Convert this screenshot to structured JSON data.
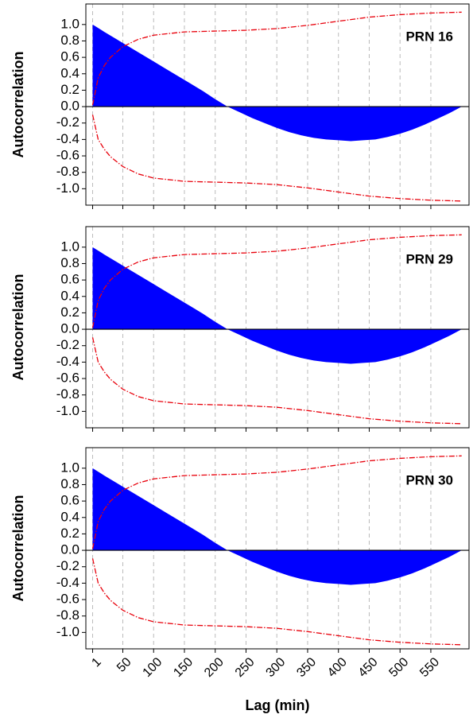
{
  "chart_data": [
    {
      "type": "area",
      "annotation": "PRN 16",
      "ylabel": "Autocorrelation",
      "xtick_labels": false,
      "x": [
        1,
        20,
        40,
        60,
        80,
        100,
        120,
        140,
        160,
        180,
        200,
        220,
        240,
        260,
        280,
        300,
        320,
        340,
        360,
        380,
        400,
        420,
        440,
        460,
        480,
        500,
        520,
        540,
        560,
        580,
        600
      ],
      "series": [
        {
          "color": "#0000ff",
          "values": [
            1.0,
            0.91,
            0.82,
            0.73,
            0.64,
            0.55,
            0.46,
            0.37,
            0.28,
            0.19,
            0.09,
            0.0,
            -0.07,
            -0.14,
            -0.2,
            -0.26,
            -0.31,
            -0.35,
            -0.38,
            -0.4,
            -0.41,
            -0.42,
            -0.41,
            -0.4,
            -0.37,
            -0.33,
            -0.28,
            -0.22,
            -0.15,
            -0.08,
            0.0
          ]
        },
        {
          "color": "#e8000b",
          "x": [
            1,
            10,
            20,
            30,
            50,
            75,
            100,
            150,
            200,
            250,
            300,
            350,
            400,
            450,
            500,
            550,
            600
          ],
          "values": [
            0.02,
            0.35,
            0.5,
            0.6,
            0.73,
            0.82,
            0.87,
            0.91,
            0.92,
            0.93,
            0.95,
            0.99,
            1.04,
            1.09,
            1.12,
            1.14,
            1.15
          ]
        },
        {
          "color": "#e8000b",
          "x": [
            1,
            10,
            20,
            30,
            50,
            75,
            100,
            150,
            200,
            250,
            300,
            350,
            400,
            450,
            500,
            550,
            600
          ],
          "values": [
            -0.1,
            -0.4,
            -0.52,
            -0.61,
            -0.73,
            -0.82,
            -0.87,
            -0.91,
            -0.92,
            -0.93,
            -0.95,
            -0.99,
            -1.04,
            -1.09,
            -1.12,
            -1.14,
            -1.15
          ]
        }
      ],
      "xlim": [
        -10,
        612
      ],
      "ylim": [
        -1.2,
        1.25
      ],
      "grid": true,
      "xticks": [
        1,
        50,
        100,
        150,
        200,
        250,
        300,
        350,
        400,
        450,
        500,
        550
      ],
      "yticks": [
        {
          "value": -1,
          "label": "-1.0"
        },
        -0.8,
        -0.6,
        -0.4,
        -0.2,
        {
          "value": 0,
          "label": "0.0"
        },
        0.2,
        0.4,
        0.6,
        0.8,
        {
          "value": 1,
          "label": "1.0"
        }
      ]
    },
    {
      "type": "area",
      "annotation": "PRN 29",
      "ylabel": "Autocorrelation",
      "xtick_labels": false,
      "x": [
        1,
        20,
        40,
        60,
        80,
        100,
        120,
        140,
        160,
        180,
        200,
        220,
        240,
        260,
        280,
        300,
        320,
        340,
        360,
        380,
        400,
        420,
        440,
        460,
        480,
        500,
        520,
        540,
        560,
        580,
        600
      ],
      "series": [
        {
          "color": "#0000ff",
          "values": [
            1.0,
            0.91,
            0.82,
            0.73,
            0.64,
            0.55,
            0.46,
            0.37,
            0.28,
            0.19,
            0.09,
            0.0,
            -0.07,
            -0.14,
            -0.2,
            -0.26,
            -0.31,
            -0.35,
            -0.38,
            -0.4,
            -0.41,
            -0.42,
            -0.41,
            -0.4,
            -0.37,
            -0.33,
            -0.28,
            -0.22,
            -0.15,
            -0.08,
            0.0
          ]
        },
        {
          "color": "#e8000b",
          "x": [
            1,
            10,
            20,
            30,
            50,
            75,
            100,
            150,
            200,
            250,
            300,
            350,
            400,
            450,
            500,
            550,
            600
          ],
          "values": [
            0.02,
            0.35,
            0.5,
            0.6,
            0.73,
            0.82,
            0.87,
            0.91,
            0.92,
            0.93,
            0.95,
            0.99,
            1.04,
            1.09,
            1.12,
            1.14,
            1.15
          ]
        },
        {
          "color": "#e8000b",
          "x": [
            1,
            10,
            20,
            30,
            50,
            75,
            100,
            150,
            200,
            250,
            300,
            350,
            400,
            450,
            500,
            550,
            600
          ],
          "values": [
            -0.1,
            -0.4,
            -0.52,
            -0.61,
            -0.73,
            -0.82,
            -0.87,
            -0.91,
            -0.92,
            -0.93,
            -0.95,
            -0.99,
            -1.04,
            -1.09,
            -1.12,
            -1.14,
            -1.15
          ]
        }
      ],
      "xlim": [
        -10,
        612
      ],
      "ylim": [
        -1.2,
        1.25
      ],
      "grid": true,
      "xticks": [
        1,
        50,
        100,
        150,
        200,
        250,
        300,
        350,
        400,
        450,
        500,
        550
      ],
      "yticks": [
        {
          "value": -1,
          "label": "-1.0"
        },
        -0.8,
        -0.6,
        -0.4,
        -0.2,
        {
          "value": 0,
          "label": "0.0"
        },
        0.2,
        0.4,
        0.6,
        0.8,
        {
          "value": 1,
          "label": "1.0"
        }
      ]
    },
    {
      "type": "area",
      "annotation": "PRN 30",
      "ylabel": "Autocorrelation",
      "xlabel": "Lag (min)",
      "xtick_labels": true,
      "x": [
        1,
        20,
        40,
        60,
        80,
        100,
        120,
        140,
        160,
        180,
        200,
        220,
        240,
        260,
        280,
        300,
        320,
        340,
        360,
        380,
        400,
        420,
        440,
        460,
        480,
        500,
        520,
        540,
        560,
        580,
        600
      ],
      "series": [
        {
          "color": "#0000ff",
          "values": [
            1.0,
            0.91,
            0.82,
            0.73,
            0.64,
            0.55,
            0.46,
            0.37,
            0.28,
            0.19,
            0.09,
            0.0,
            -0.07,
            -0.14,
            -0.2,
            -0.26,
            -0.31,
            -0.35,
            -0.38,
            -0.4,
            -0.41,
            -0.42,
            -0.41,
            -0.4,
            -0.37,
            -0.33,
            -0.28,
            -0.22,
            -0.15,
            -0.08,
            0.0
          ]
        },
        {
          "color": "#e8000b",
          "x": [
            1,
            10,
            20,
            30,
            50,
            75,
            100,
            150,
            200,
            250,
            300,
            350,
            400,
            450,
            500,
            550,
            600
          ],
          "values": [
            0.02,
            0.35,
            0.5,
            0.6,
            0.73,
            0.82,
            0.87,
            0.91,
            0.92,
            0.93,
            0.95,
            0.99,
            1.04,
            1.09,
            1.12,
            1.14,
            1.15
          ]
        },
        {
          "color": "#e8000b",
          "x": [
            1,
            10,
            20,
            30,
            50,
            75,
            100,
            150,
            200,
            250,
            300,
            350,
            400,
            450,
            500,
            550,
            600
          ],
          "values": [
            -0.1,
            -0.4,
            -0.52,
            -0.61,
            -0.73,
            -0.82,
            -0.87,
            -0.91,
            -0.92,
            -0.93,
            -0.95,
            -0.99,
            -1.04,
            -1.09,
            -1.12,
            -1.14,
            -1.15
          ]
        }
      ],
      "xlim": [
        -10,
        612
      ],
      "ylim": [
        -1.2,
        1.25
      ],
      "grid": true,
      "xticks": [
        1,
        50,
        100,
        150,
        200,
        250,
        300,
        350,
        400,
        450,
        500,
        550
      ],
      "yticks": [
        {
          "value": -1,
          "label": "-1.0"
        },
        -0.8,
        -0.6,
        -0.4,
        -0.2,
        {
          "value": 0,
          "label": "0.0"
        },
        0.2,
        0.4,
        0.6,
        0.8,
        {
          "value": 1,
          "label": "1.0"
        }
      ]
    }
  ]
}
